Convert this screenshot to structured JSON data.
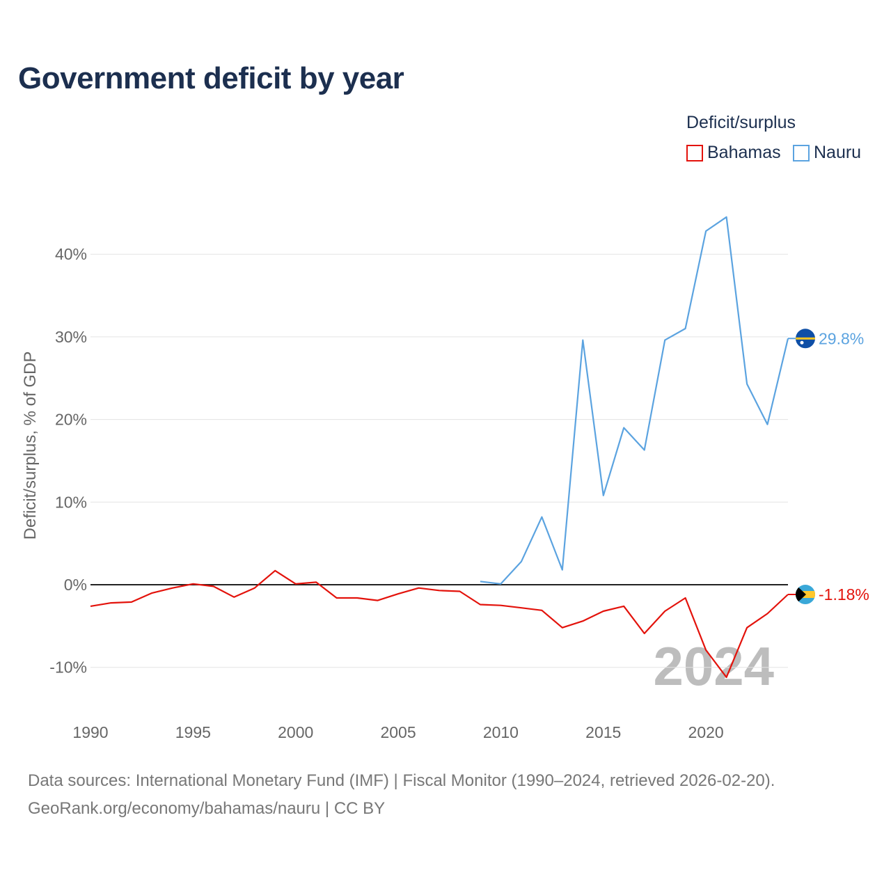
{
  "title": "Government deficit by year",
  "legend": {
    "title": "Deficit/surplus",
    "items": [
      {
        "label": "Bahamas",
        "color": "#e3120b"
      },
      {
        "label": "Nauru",
        "color": "#5ba3e0"
      }
    ]
  },
  "chart_data": {
    "type": "line",
    "title": "Government deficit by year",
    "xlabel": "",
    "ylabel": "Deficit/surplus, % of GDP",
    "xlim": [
      1990,
      2024
    ],
    "ylim": [
      -15,
      50
    ],
    "yticks": [
      -10,
      0,
      10,
      20,
      30,
      40
    ],
    "ytick_labels": [
      "-10%",
      "0%",
      "10%",
      "20%",
      "30%",
      "40%"
    ],
    "xticks": [
      1990,
      1995,
      2000,
      2005,
      2010,
      2015,
      2020
    ],
    "xtick_labels": [
      "1990",
      "1995",
      "2000",
      "2005",
      "2010",
      "2015",
      "2020"
    ],
    "grid": true,
    "year_watermark": "2024",
    "series": [
      {
        "name": "Bahamas",
        "color": "#e3120b",
        "end_label": "-1.18%",
        "flag": "bahamas-flag",
        "x": [
          1990,
          1991,
          1992,
          1993,
          1994,
          1995,
          1996,
          1997,
          1998,
          1999,
          2000,
          2001,
          2002,
          2003,
          2004,
          2005,
          2006,
          2007,
          2008,
          2009,
          2010,
          2011,
          2012,
          2013,
          2014,
          2015,
          2016,
          2017,
          2018,
          2019,
          2020,
          2021,
          2022,
          2023,
          2024
        ],
        "values": [
          -2.6,
          -2.2,
          -2.1,
          -1.0,
          -0.4,
          0.1,
          -0.2,
          -1.5,
          -0.4,
          1.7,
          0.1,
          0.3,
          -1.6,
          -1.6,
          -1.9,
          -1.1,
          -0.4,
          -0.7,
          -0.8,
          -2.4,
          -2.5,
          -2.8,
          -3.1,
          -5.2,
          -4.4,
          -3.2,
          -2.6,
          -5.9,
          -3.2,
          -1.6,
          -7.9,
          -11.2,
          -5.2,
          -3.5,
          -1.18
        ]
      },
      {
        "name": "Nauru",
        "color": "#5ba3e0",
        "end_label": "29.8%",
        "flag": "nauru-flag",
        "x": [
          2009,
          2010,
          2011,
          2012,
          2013,
          2014,
          2015,
          2016,
          2017,
          2018,
          2019,
          2020,
          2021,
          2022,
          2023,
          2024
        ],
        "values": [
          0.4,
          0.1,
          2.8,
          8.2,
          1.8,
          29.6,
          10.8,
          19.0,
          16.3,
          29.6,
          31.0,
          42.8,
          44.5,
          24.3,
          19.4,
          29.8
        ]
      }
    ]
  },
  "footer": {
    "line1": "Data sources: International Monetary Fund (IMF) | Fiscal Monitor (1990–2024, retrieved 2026-02-20).",
    "line2": "GeoRank.org/economy/bahamas/nauru | CC BY"
  }
}
